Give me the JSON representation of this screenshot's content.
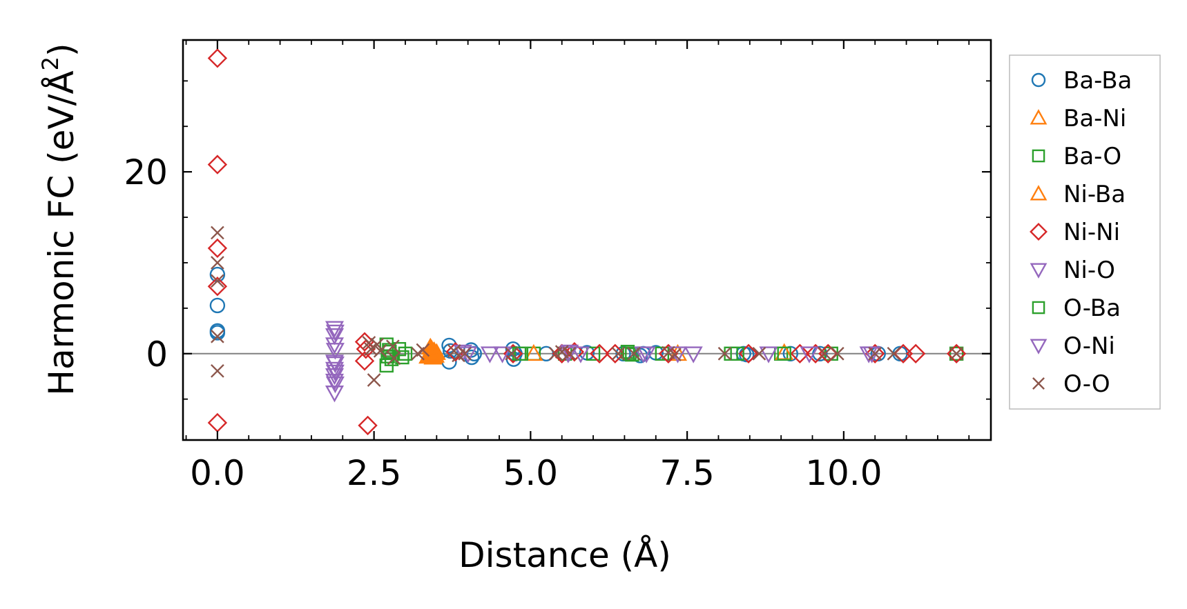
{
  "chart_data": {
    "type": "scatter",
    "title": "",
    "xlabel": "Distance (Å)",
    "ylabel": "Harmonic FC (eV/Å",
    "ylabel_superscript": "2",
    "ylabel_suffix": ")",
    "xlim": [
      -0.55,
      12.35
    ],
    "ylim": [
      -9.5,
      34.5
    ],
    "xticks": [
      0.0,
      2.5,
      5.0,
      7.5,
      10.0
    ],
    "xtick_labels": [
      "0.0",
      "2.5",
      "5.0",
      "7.5",
      "10.0"
    ],
    "yticks": [
      0,
      20
    ],
    "ytick_labels": [
      "0",
      "20"
    ],
    "zero_line": true,
    "grid": false,
    "legend_position": "outside-right",
    "series": [
      {
        "name": "Ba-Ba",
        "marker": "circle",
        "color": "#1f77b4",
        "filled": false,
        "points": [
          [
            0.0,
            2.3
          ],
          [
            0.0,
            5.3
          ],
          [
            0.0,
            8.7
          ],
          [
            0.0,
            2.5
          ],
          [
            3.7,
            0.9
          ],
          [
            3.7,
            -0.9
          ],
          [
            3.72,
            0.3
          ],
          [
            4.05,
            0.4
          ],
          [
            4.06,
            -0.4
          ],
          [
            4.1,
            0.0
          ],
          [
            4.72,
            0.5
          ],
          [
            4.73,
            -0.6
          ],
          [
            4.75,
            0.0
          ],
          [
            5.25,
            0.0
          ],
          [
            5.9,
            0.1
          ],
          [
            6.48,
            0.0
          ],
          [
            6.75,
            -0.2
          ],
          [
            6.8,
            0.0
          ],
          [
            7.0,
            0.1
          ],
          [
            8.4,
            0.0
          ],
          [
            8.45,
            -0.1
          ],
          [
            9.15,
            0.0
          ],
          [
            9.62,
            0.0
          ],
          [
            10.55,
            0.0
          ],
          [
            10.9,
            0.0
          ],
          [
            11.8,
            0.0
          ]
        ]
      },
      {
        "name": "Ba-Ni",
        "marker": "triangle-up",
        "color": "#ff7f0e",
        "filled": true,
        "points": [
          [
            3.36,
            -0.3
          ],
          [
            3.4,
            0.7
          ],
          [
            3.42,
            0.2
          ],
          [
            3.44,
            -0.4
          ],
          [
            3.46,
            0.3
          ],
          [
            3.48,
            -0.2
          ],
          [
            3.5,
            0.1
          ]
        ]
      },
      {
        "name": "Ba-O",
        "marker": "square",
        "color": "#2ca02c",
        "filled": false,
        "points": [
          [
            2.7,
            1.0
          ],
          [
            2.7,
            -1.3
          ],
          [
            2.72,
            -0.3
          ],
          [
            2.74,
            0.4
          ],
          [
            2.9,
            0.5
          ],
          [
            2.95,
            -0.4
          ],
          [
            3.0,
            0.0
          ],
          [
            4.82,
            0.0
          ],
          [
            5.05,
            0.0
          ],
          [
            5.55,
            0.0
          ],
          [
            6.0,
            0.0
          ],
          [
            6.55,
            0.2
          ],
          [
            6.62,
            -0.1
          ],
          [
            7.1,
            0.0
          ],
          [
            8.2,
            0.0
          ],
          [
            9.0,
            0.0
          ],
          [
            9.8,
            0.0
          ],
          [
            11.8,
            0.0
          ]
        ]
      },
      {
        "name": "Ni-Ba",
        "marker": "triangle-up",
        "color": "#ff7f0e",
        "filled": false,
        "points": [
          [
            3.42,
            0.5
          ],
          [
            3.45,
            -0.3
          ],
          [
            5.05,
            0.0
          ],
          [
            7.35,
            0.0
          ],
          [
            9.05,
            0.1
          ]
        ]
      },
      {
        "name": "Ni-Ni",
        "marker": "diamond",
        "color": "#d62728",
        "filled": false,
        "points": [
          [
            0.0,
            32.5
          ],
          [
            0.0,
            20.8
          ],
          [
            0.0,
            11.6
          ],
          [
            0.0,
            7.4
          ],
          [
            0.0,
            -7.6
          ],
          [
            2.35,
            1.3
          ],
          [
            2.35,
            -0.8
          ],
          [
            2.37,
            0.5
          ],
          [
            2.4,
            -7.9
          ],
          [
            3.8,
            0.2
          ],
          [
            4.72,
            0.0
          ],
          [
            5.5,
            0.0
          ],
          [
            5.7,
            0.2
          ],
          [
            6.1,
            0.0
          ],
          [
            6.35,
            0.0
          ],
          [
            7.2,
            0.0
          ],
          [
            8.48,
            0.0
          ],
          [
            9.3,
            0.0
          ],
          [
            9.55,
            0.0
          ],
          [
            9.75,
            0.0
          ],
          [
            10.5,
            0.0
          ],
          [
            10.95,
            0.0
          ],
          [
            11.15,
            0.0
          ],
          [
            11.8,
            0.0
          ]
        ]
      },
      {
        "name": "Ni-O",
        "marker": "triangle-down",
        "color": "#9467bd",
        "filled": false,
        "points": [
          [
            1.87,
            2.8
          ],
          [
            1.87,
            2.0
          ],
          [
            1.87,
            1.0
          ],
          [
            1.87,
            -0.9
          ],
          [
            1.87,
            -1.7
          ],
          [
            1.87,
            -2.4
          ],
          [
            1.87,
            -3.0
          ],
          [
            1.87,
            -4.3
          ],
          [
            3.92,
            0.2
          ],
          [
            4.35,
            0.0
          ],
          [
            4.55,
            0.0
          ],
          [
            5.62,
            0.2
          ],
          [
            5.8,
            0.0
          ],
          [
            6.85,
            0.0
          ],
          [
            7.35,
            0.0
          ],
          [
            7.6,
            0.0
          ],
          [
            8.8,
            0.0
          ],
          [
            9.45,
            0.0
          ],
          [
            10.4,
            0.0
          ]
        ]
      },
      {
        "name": "O-Ba",
        "marker": "square",
        "color": "#2ca02c",
        "filled": false,
        "points": [
          [
            2.75,
            0.2
          ],
          [
            2.78,
            -0.6
          ],
          [
            4.85,
            0.0
          ],
          [
            6.58,
            0.0
          ],
          [
            8.3,
            0.0
          ],
          [
            9.05,
            0.0
          ]
        ]
      },
      {
        "name": "O-Ni",
        "marker": "triangle-down",
        "color": "#9467bd",
        "filled": false,
        "points": [
          [
            1.88,
            2.4
          ],
          [
            1.88,
            0.4
          ],
          [
            1.88,
            -1.1
          ],
          [
            1.88,
            -2.0
          ],
          [
            1.88,
            -3.3
          ],
          [
            4.0,
            0.0
          ],
          [
            5.6,
            0.0
          ],
          [
            6.8,
            0.0
          ],
          [
            10.45,
            0.0
          ]
        ]
      },
      {
        "name": "O-O",
        "marker": "x",
        "color": "#8c564b",
        "filled": false,
        "points": [
          [
            0.0,
            13.3
          ],
          [
            0.0,
            10.0
          ],
          [
            0.0,
            8.0
          ],
          [
            0.0,
            1.9
          ],
          [
            0.0,
            -1.9
          ],
          [
            2.42,
            1.2
          ],
          [
            2.45,
            0.5
          ],
          [
            2.5,
            -2.9
          ],
          [
            2.55,
            1.0
          ],
          [
            2.6,
            0.3
          ],
          [
            2.8,
            0.8
          ],
          [
            2.82,
            -0.5
          ],
          [
            3.2,
            0.0
          ],
          [
            3.28,
            0.4
          ],
          [
            3.78,
            0.3
          ],
          [
            3.85,
            -0.2
          ],
          [
            3.95,
            0.0
          ],
          [
            4.7,
            0.0
          ],
          [
            5.4,
            0.0
          ],
          [
            5.5,
            0.2
          ],
          [
            5.62,
            0.0
          ],
          [
            6.4,
            0.0
          ],
          [
            6.65,
            0.0
          ],
          [
            7.2,
            0.1
          ],
          [
            7.3,
            -0.1
          ],
          [
            8.1,
            0.0
          ],
          [
            8.65,
            0.0
          ],
          [
            9.7,
            0.0
          ],
          [
            9.9,
            0.0
          ],
          [
            10.5,
            0.0
          ],
          [
            10.8,
            0.0
          ],
          [
            11.8,
            0.0
          ]
        ]
      }
    ]
  }
}
